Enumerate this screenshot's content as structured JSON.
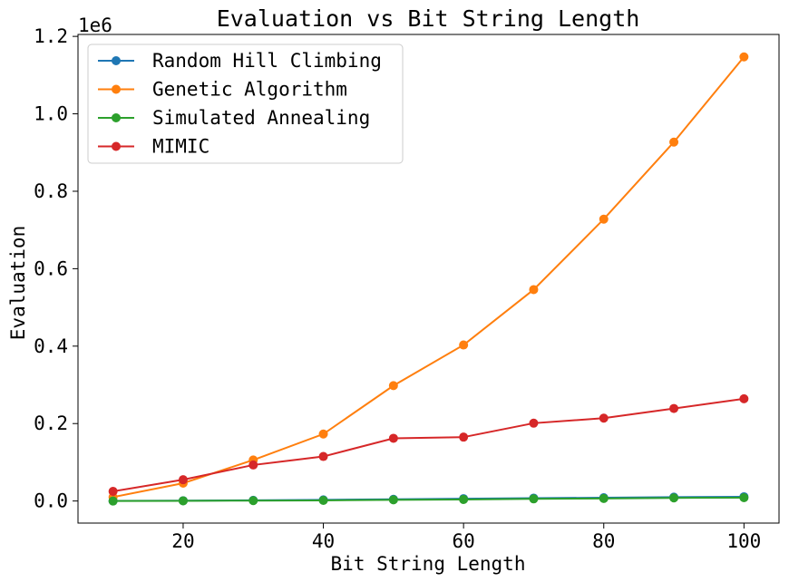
{
  "chart_data": {
    "type": "line",
    "title": "Evaluation vs Bit String Length",
    "xlabel": "Bit String Length",
    "ylabel": "Evaluation",
    "y_offset_label": "1e6",
    "x": [
      10,
      20,
      30,
      40,
      50,
      60,
      70,
      80,
      90,
      100
    ],
    "xlim": [
      5,
      105
    ],
    "ylim": [
      -57000,
      1205000
    ],
    "x_ticks": [
      20,
      40,
      60,
      80,
      100
    ],
    "x_tick_labels": [
      "20",
      "40",
      "60",
      "80",
      "100"
    ],
    "y_ticks": [
      0,
      200000,
      400000,
      600000,
      800000,
      1000000,
      1200000
    ],
    "y_tick_labels": [
      "0.0",
      "0.2",
      "0.4",
      "0.6",
      "0.8",
      "1.0",
      "1.2"
    ],
    "grid": false,
    "legend_position": "top-left",
    "series": [
      {
        "name": "Random Hill Climbing",
        "color": "#1f77b4",
        "values": [
          200,
          800,
          1800,
          3000,
          4500,
          6000,
          7500,
          8500,
          10000,
          11000
        ]
      },
      {
        "name": "Genetic Algorithm",
        "color": "#ff7f0e",
        "values": [
          10000,
          46000,
          106000,
          173000,
          298000,
          403000,
          546000,
          728000,
          927000,
          1147000
        ]
      },
      {
        "name": "Simulated Annealing",
        "color": "#2ca02c",
        "values": [
          0,
          500,
          1000,
          1500,
          3000,
          4000,
          5500,
          6500,
          8000,
          8500
        ]
      },
      {
        "name": "MIMIC",
        "color": "#d62728",
        "values": [
          25000,
          55000,
          93000,
          115000,
          162000,
          165000,
          201000,
          214000,
          239000,
          264000
        ]
      }
    ]
  }
}
